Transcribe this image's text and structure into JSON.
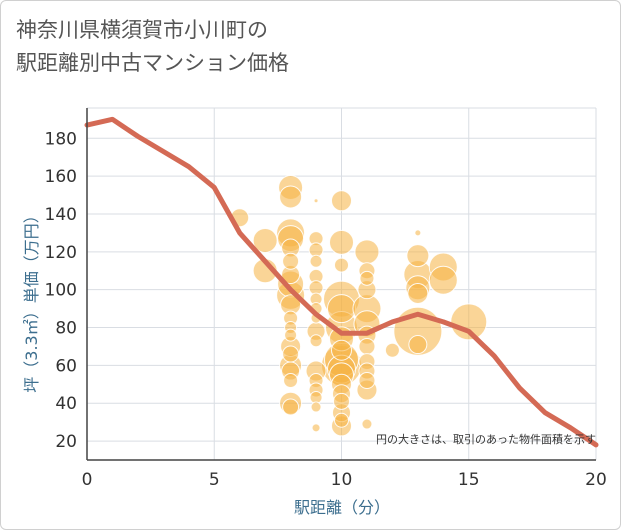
{
  "title_line1": "神奈川県横須賀市小川町の",
  "title_line2": "駅距離別中古マンション価格",
  "chart_data": {
    "type": "scatter+line",
    "title": "神奈川県横須賀市小川町の駅距離別中古マンション価格",
    "xlabel": "駅距離（分）",
    "ylabel": "坪（3.3㎡）単価（万円）",
    "xlim": [
      0,
      20
    ],
    "ylim": [
      10,
      196
    ],
    "x_ticks": [
      0,
      5,
      10,
      15,
      20
    ],
    "y_ticks": [
      20,
      40,
      60,
      80,
      100,
      120,
      140,
      160,
      180
    ],
    "grid": true,
    "note": "円の大きさは、取引のあった物件面積を示す",
    "colors": {
      "bubble": "#f5b342",
      "line": "#d46a55",
      "grid": "#d9dde3"
    },
    "trend_line": {
      "x": [
        0,
        1,
        2,
        3,
        4,
        5,
        6,
        7,
        8,
        9,
        10,
        11,
        12,
        13,
        14,
        15,
        16,
        17,
        18,
        19,
        20
      ],
      "y": [
        187,
        190,
        181,
        173,
        165,
        154,
        130,
        115,
        100,
        87,
        77,
        77,
        83,
        87,
        83,
        78,
        65,
        48,
        35,
        27,
        18
      ]
    },
    "bubbles": [
      {
        "x": 6,
        "y": 138,
        "r": 9
      },
      {
        "x": 7,
        "y": 126,
        "r": 12
      },
      {
        "x": 7,
        "y": 110,
        "r": 12
      },
      {
        "x": 8,
        "y": 154,
        "r": 12
      },
      {
        "x": 8,
        "y": 149,
        "r": 11
      },
      {
        "x": 8,
        "y": 130,
        "r": 14
      },
      {
        "x": 8,
        "y": 127,
        "r": 13
      },
      {
        "x": 8,
        "y": 122,
        "r": 9
      },
      {
        "x": 8,
        "y": 115,
        "r": 8
      },
      {
        "x": 8,
        "y": 108,
        "r": 9
      },
      {
        "x": 8,
        "y": 103,
        "r": 13
      },
      {
        "x": 8,
        "y": 97,
        "r": 14
      },
      {
        "x": 8,
        "y": 92,
        "r": 10
      },
      {
        "x": 8,
        "y": 85,
        "r": 7
      },
      {
        "x": 8,
        "y": 80,
        "r": 6
      },
      {
        "x": 8,
        "y": 76,
        "r": 6
      },
      {
        "x": 8,
        "y": 70,
        "r": 10
      },
      {
        "x": 8,
        "y": 66,
        "r": 8
      },
      {
        "x": 8,
        "y": 60,
        "r": 11
      },
      {
        "x": 8,
        "y": 57,
        "r": 9
      },
      {
        "x": 8,
        "y": 52,
        "r": 7
      },
      {
        "x": 8,
        "y": 40,
        "r": 11
      },
      {
        "x": 8,
        "y": 38,
        "r": 8
      },
      {
        "x": 9,
        "y": 147,
        "r": 2
      },
      {
        "x": 9,
        "y": 127,
        "r": 7
      },
      {
        "x": 9,
        "y": 121,
        "r": 7
      },
      {
        "x": 9,
        "y": 115,
        "r": 6
      },
      {
        "x": 9,
        "y": 107,
        "r": 7
      },
      {
        "x": 9,
        "y": 101,
        "r": 7
      },
      {
        "x": 9,
        "y": 95,
        "r": 6
      },
      {
        "x": 9,
        "y": 90,
        "r": 6
      },
      {
        "x": 9,
        "y": 85,
        "r": 5
      },
      {
        "x": 9,
        "y": 78,
        "r": 9
      },
      {
        "x": 9,
        "y": 73,
        "r": 6
      },
      {
        "x": 9,
        "y": 57,
        "r": 10
      },
      {
        "x": 9,
        "y": 52,
        "r": 7
      },
      {
        "x": 9,
        "y": 47,
        "r": 7
      },
      {
        "x": 9,
        "y": 43,
        "r": 6
      },
      {
        "x": 9,
        "y": 38,
        "r": 5
      },
      {
        "x": 9,
        "y": 27,
        "r": 4
      },
      {
        "x": 10,
        "y": 147,
        "r": 10
      },
      {
        "x": 10,
        "y": 125,
        "r": 12
      },
      {
        "x": 10,
        "y": 113,
        "r": 7
      },
      {
        "x": 10,
        "y": 95,
        "r": 18
      },
      {
        "x": 10,
        "y": 90,
        "r": 14
      },
      {
        "x": 10,
        "y": 80,
        "r": 16
      },
      {
        "x": 10,
        "y": 74,
        "r": 12
      },
      {
        "x": 10,
        "y": 68,
        "r": 10
      },
      {
        "x": 10,
        "y": 63,
        "r": 17
      },
      {
        "x": 10,
        "y": 60,
        "r": 20
      },
      {
        "x": 10,
        "y": 58,
        "r": 14
      },
      {
        "x": 10,
        "y": 55,
        "r": 12
      },
      {
        "x": 10,
        "y": 50,
        "r": 10
      },
      {
        "x": 10,
        "y": 45,
        "r": 9
      },
      {
        "x": 10,
        "y": 41,
        "r": 8
      },
      {
        "x": 10,
        "y": 35,
        "r": 9
      },
      {
        "x": 10,
        "y": 31,
        "r": 7
      },
      {
        "x": 10,
        "y": 28,
        "r": 10
      },
      {
        "x": 11,
        "y": 120,
        "r": 12
      },
      {
        "x": 11,
        "y": 110,
        "r": 8
      },
      {
        "x": 11,
        "y": 106,
        "r": 7
      },
      {
        "x": 11,
        "y": 100,
        "r": 9
      },
      {
        "x": 11,
        "y": 90,
        "r": 14
      },
      {
        "x": 11,
        "y": 82,
        "r": 13
      },
      {
        "x": 11,
        "y": 76,
        "r": 9
      },
      {
        "x": 11,
        "y": 70,
        "r": 8
      },
      {
        "x": 11,
        "y": 62,
        "r": 8
      },
      {
        "x": 11,
        "y": 57,
        "r": 8
      },
      {
        "x": 11,
        "y": 52,
        "r": 8
      },
      {
        "x": 11,
        "y": 47,
        "r": 10
      },
      {
        "x": 11,
        "y": 29,
        "r": 5
      },
      {
        "x": 12,
        "y": 68,
        "r": 7
      },
      {
        "x": 13,
        "y": 130,
        "r": 3
      },
      {
        "x": 13,
        "y": 118,
        "r": 11
      },
      {
        "x": 13,
        "y": 108,
        "r": 14
      },
      {
        "x": 13,
        "y": 101,
        "r": 12
      },
      {
        "x": 13,
        "y": 98,
        "r": 10
      },
      {
        "x": 13,
        "y": 78,
        "r": 24
      },
      {
        "x": 13,
        "y": 71,
        "r": 9
      },
      {
        "x": 14,
        "y": 112,
        "r": 14
      },
      {
        "x": 14,
        "y": 105,
        "r": 14
      },
      {
        "x": 15,
        "y": 83,
        "r": 18
      }
    ]
  }
}
